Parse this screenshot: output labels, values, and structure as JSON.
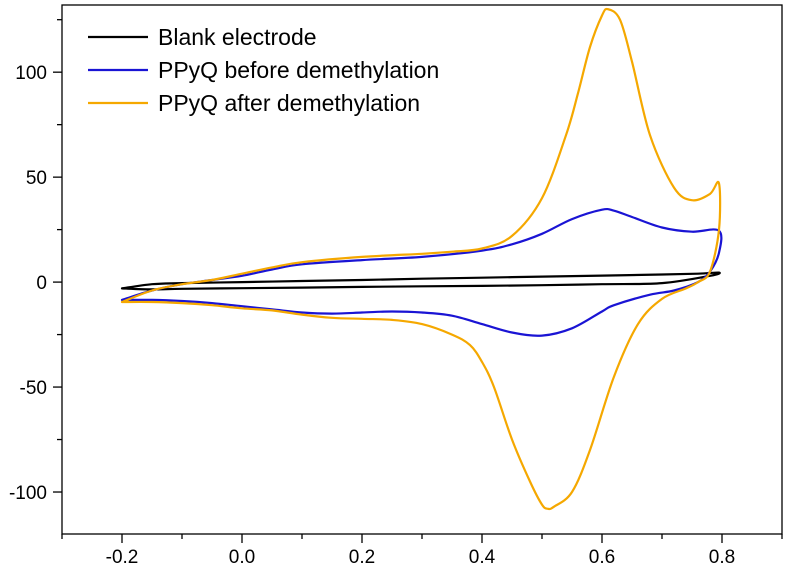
{
  "chart_data": {
    "type": "line",
    "title": "",
    "xlabel": "",
    "ylabel": "",
    "xlim": [
      -0.3,
      0.9
    ],
    "ylim": [
      -120,
      132
    ],
    "x_ticks": [
      -0.2,
      0.0,
      0.2,
      0.4,
      0.6,
      0.8
    ],
    "x_tick_labels": [
      "-0.2",
      "0.0",
      "0.2",
      "0.4",
      "0.6",
      "0.8"
    ],
    "y_ticks": [
      -100,
      -50,
      0,
      50,
      100
    ],
    "y_tick_labels": [
      "-100",
      "-50",
      "0",
      "50",
      "100"
    ],
    "grid": false,
    "legend_position": "top-left",
    "series": [
      {
        "name": "Blank electrode",
        "color": "#000000",
        "x": [
          -0.2,
          -0.15,
          -0.1,
          0.0,
          0.1,
          0.2,
          0.3,
          0.4,
          0.5,
          0.6,
          0.7,
          0.76,
          0.795,
          0.78,
          0.7,
          0.6,
          0.5,
          0.4,
          0.3,
          0.2,
          0.1,
          0.0,
          -0.1,
          -0.15,
          -0.2
        ],
        "y": [
          -3,
          -1,
          -0.5,
          0,
          0.5,
          1,
          1.6,
          2.1,
          2.6,
          3.1,
          3.6,
          4,
          4.5,
          3,
          -0.5,
          -1,
          -1.5,
          -1.8,
          -2,
          -2.3,
          -2.6,
          -2.9,
          -3.2,
          -3.5,
          -3
        ]
      },
      {
        "name": "PPyQ before demethylation",
        "color": "#1a14d4",
        "x": [
          -0.2,
          -0.15,
          -0.1,
          -0.05,
          0.0,
          0.05,
          0.1,
          0.2,
          0.3,
          0.4,
          0.45,
          0.5,
          0.55,
          0.6,
          0.62,
          0.65,
          0.7,
          0.75,
          0.795,
          0.795,
          0.78,
          0.76,
          0.72,
          0.68,
          0.62,
          0.6,
          0.55,
          0.5,
          0.45,
          0.4,
          0.35,
          0.3,
          0.25,
          0.2,
          0.15,
          0.1,
          0.05,
          0.0,
          -0.05,
          -0.1,
          -0.15,
          -0.2
        ],
        "y": [
          -8.5,
          -4,
          -1,
          1,
          3,
          6,
          8.5,
          10.5,
          12,
          15,
          18,
          23,
          30,
          34.5,
          34,
          31,
          26,
          24,
          24.5,
          14,
          5,
          0,
          -4,
          -6,
          -11,
          -14,
          -22,
          -25.5,
          -24,
          -20,
          -16,
          -14.5,
          -14,
          -14.5,
          -15,
          -14.5,
          -13,
          -11.5,
          -10,
          -9,
          -8.5,
          -8.5
        ]
      },
      {
        "name": "PPyQ after demethylation",
        "color": "#f5a800",
        "x": [
          -0.2,
          -0.15,
          -0.1,
          -0.05,
          0.0,
          0.05,
          0.1,
          0.2,
          0.3,
          0.35,
          0.4,
          0.45,
          0.5,
          0.54,
          0.56,
          0.58,
          0.6,
          0.61,
          0.63,
          0.65,
          0.68,
          0.72,
          0.75,
          0.78,
          0.795,
          0.795,
          0.78,
          0.76,
          0.74,
          0.7,
          0.66,
          0.62,
          0.58,
          0.55,
          0.52,
          0.51,
          0.5,
          0.48,
          0.45,
          0.42,
          0.4,
          0.38,
          0.35,
          0.3,
          0.25,
          0.2,
          0.15,
          0.1,
          0.05,
          0.0,
          -0.05,
          -0.1,
          -0.15,
          -0.2
        ],
        "y": [
          -9.5,
          -4,
          -1,
          1,
          4,
          7,
          9.5,
          12,
          13.5,
          14.5,
          16,
          22,
          40,
          70,
          90,
          112,
          127,
          130,
          125,
          105,
          70,
          45,
          39,
          42,
          47,
          25,
          5,
          0,
          -3,
          -8,
          -20,
          -45,
          -80,
          -100,
          -107,
          -108,
          -106,
          -95,
          -75,
          -50,
          -38,
          -30,
          -25,
          -20,
          -18,
          -17.5,
          -17,
          -15.5,
          -13.5,
          -12.5,
          -11,
          -10,
          -9.5,
          -9.5
        ]
      }
    ]
  }
}
